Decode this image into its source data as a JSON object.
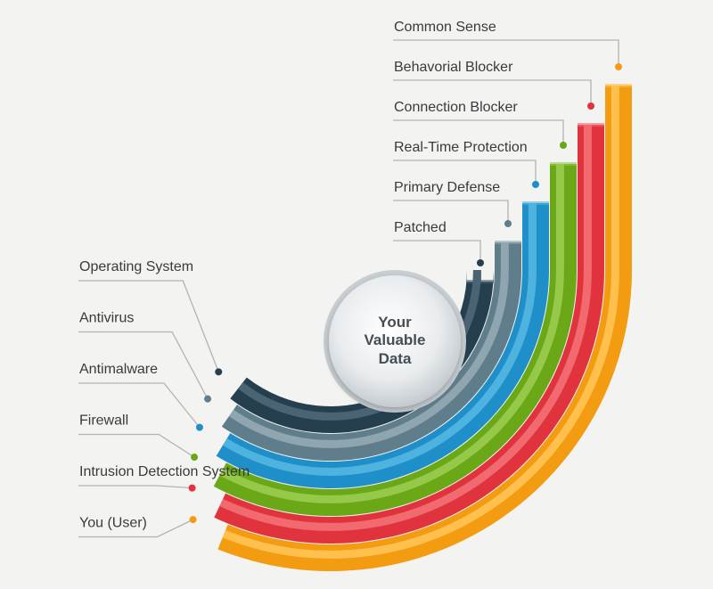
{
  "center": {
    "lines": [
      "Your",
      "Valuable",
      "Data"
    ]
  },
  "layers": [
    {
      "left_label": "Operating System",
      "right_label": "Patched",
      "color": "#263f4f",
      "light": "#4a6473",
      "dot": "#263f4f"
    },
    {
      "left_label": "Antivirus",
      "right_label": "Primary Defense",
      "color": "#607d8b",
      "light": "#8fa5b0",
      "dot": "#607d8b"
    },
    {
      "left_label": "Antimalware",
      "right_label": "Real-Time Protection",
      "color": "#1e8fc8",
      "light": "#4fb3e0",
      "dot": "#1e8fc8"
    },
    {
      "left_label": "Firewall",
      "right_label": "Connection Blocker",
      "color": "#6aa817",
      "light": "#96c94a",
      "dot": "#6aa817"
    },
    {
      "left_label": "Intrusion Detection System",
      "right_label": "Behavorial Blocker",
      "color": "#e0333d",
      "light": "#f06a70",
      "dot": "#e0333d"
    },
    {
      "left_label": "You (User)",
      "right_label": "Common Sense",
      "color": "#f39c12",
      "light": "#ffc04d",
      "dot": "#f39c12"
    }
  ]
}
